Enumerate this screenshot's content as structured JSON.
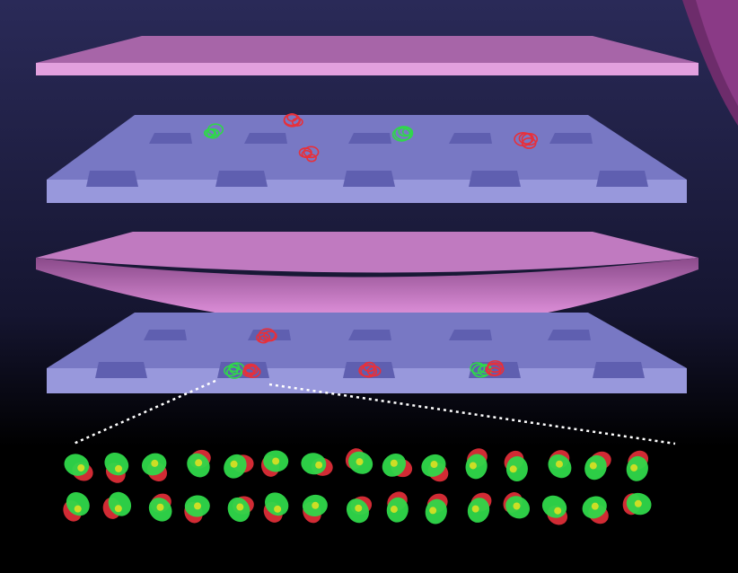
{
  "colors": {
    "background_top": "#2a2a58",
    "background_bottom": "#000000",
    "membrane_top": "#c07ac0",
    "membrane_front": "#e9a6e3",
    "slab_top": "#7e7ecb",
    "slab_front": "#9a9ae0",
    "well": "#5f5fb0",
    "green_label": "#2fd84a",
    "red_label": "#e8303a",
    "overlap": "#e8e020",
    "dotted_line": "#ffffff",
    "corner_disc": "#8a3a86"
  },
  "diagram": {
    "layers": [
      {
        "id": "top-membrane",
        "shape": "flat"
      },
      {
        "id": "upper-slab",
        "shape": "wells",
        "well_rows": 2,
        "wells_per_row": 5
      },
      {
        "id": "deformed-membrane",
        "shape": "curved"
      },
      {
        "id": "lower-slab",
        "shape": "wells",
        "well_rows": 2,
        "wells_per_row": 5
      }
    ],
    "molecules_upper": [
      {
        "color": "green"
      },
      {
        "color": "red"
      },
      {
        "color": "red"
      },
      {
        "color": "green"
      },
      {
        "color": "red"
      }
    ],
    "molecules_lower": [
      {
        "color": "red"
      },
      {
        "color": "green+red"
      },
      {
        "color": "red"
      },
      {
        "color": "green+red"
      }
    ],
    "micrograph": {
      "rows": 2,
      "cols": 15
    }
  }
}
